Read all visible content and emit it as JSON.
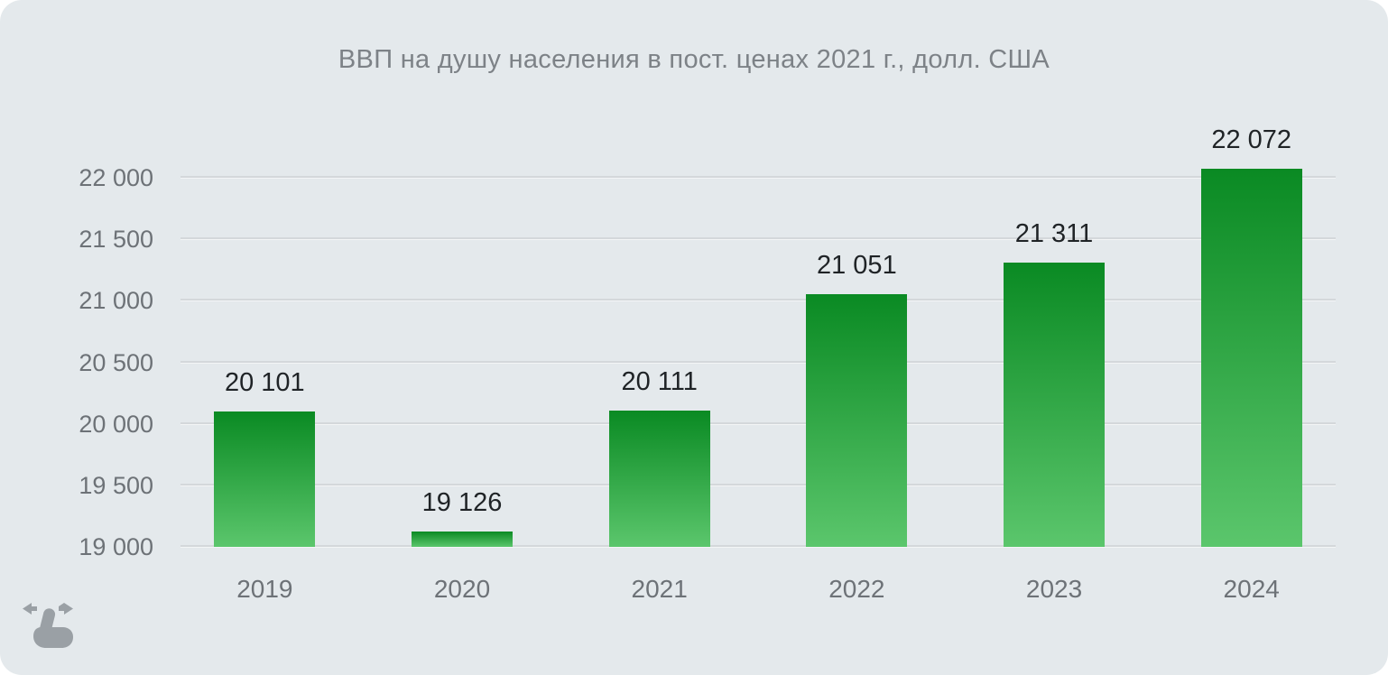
{
  "header": {
    "title": "ВВП на душу населения в пост. ценах 2021 г., долл. США"
  },
  "chart_data": {
    "type": "bar",
    "title": "ВВП на душу населения в пост. ценах 2021 г., долл. США",
    "categories": [
      "2019",
      "2020",
      "2021",
      "2022",
      "2023",
      "2024"
    ],
    "values": [
      20101,
      19126,
      20111,
      21051,
      21311,
      22072
    ],
    "value_labels": [
      "20 101",
      "19 126",
      "20 111",
      "21 051",
      "21 311",
      "22 072"
    ],
    "xlabel": "",
    "ylabel": "",
    "ylim": [
      19000,
      22000
    ],
    "yticks": [
      19000,
      19500,
      20000,
      20500,
      21000,
      21500,
      22000
    ],
    "ytick_labels": [
      "19 000",
      "19 500",
      "20 000",
      "20 500",
      "21 000",
      "21 500",
      "22 000"
    ],
    "grid": true,
    "legend": false,
    "bars_overflow_top_gridline": true
  },
  "icons": {
    "swipe_hint": "swipe-horizontal-icon"
  },
  "colors": {
    "background": "#e4e9ec",
    "title_text": "#7d8287",
    "axis_text": "#6d7277",
    "value_text": "#1f2326",
    "gridline": "#d4d8db",
    "bar_top": "#0a8a23",
    "bar_bottom": "#5bc66c",
    "icon": "#9aa0a5"
  }
}
